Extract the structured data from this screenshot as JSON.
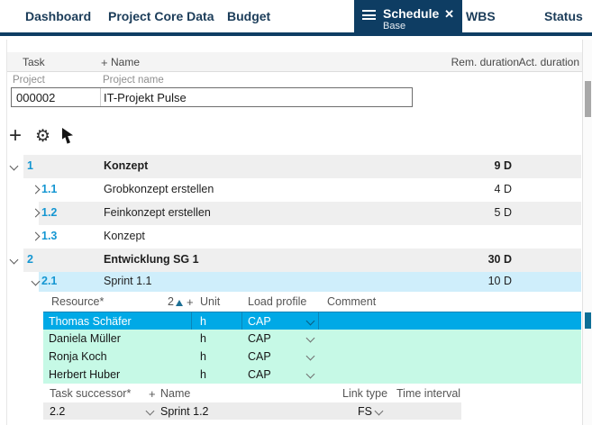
{
  "tab_bar": {
    "tabs": [
      {
        "label": "Dashboard",
        "active": false
      },
      {
        "label": "Project Core Data",
        "active": false
      },
      {
        "label": "Budget",
        "active": false
      },
      {
        "label": "Schedule",
        "active": true,
        "sublabel": "Base"
      },
      {
        "label": "WBS",
        "active": false
      },
      {
        "label": "Status",
        "active": false
      }
    ]
  },
  "table_header": {
    "task": "Task",
    "add": "+",
    "name": "Name",
    "rem_duration": "Rem. duration",
    "act_duration": "Act. duration"
  },
  "project_row": {
    "type_label": "Project",
    "name_label": "Project name",
    "id": "000002",
    "name": "IT-Projekt Pulse"
  },
  "toolbar": {
    "add_label": "+",
    "settings_glyph": "⚙"
  },
  "tasks": [
    {
      "wbs": "1",
      "name": "Konzept",
      "rem_duration": "9 D",
      "level": 1,
      "expanded": true,
      "emphasis": true,
      "shade": "gray"
    },
    {
      "wbs": "1.1",
      "name": "Grobkonzept erstellen",
      "rem_duration": "4 D",
      "level": 2,
      "expanded": false,
      "emphasis": false,
      "shade": "white"
    },
    {
      "wbs": "1.2",
      "name": "Feinkonzept erstellen",
      "rem_duration": "5 D",
      "level": 2,
      "expanded": false,
      "emphasis": false,
      "shade": "gray"
    },
    {
      "wbs": "1.3",
      "name": "Konzept",
      "rem_duration": "",
      "level": 2,
      "expanded": false,
      "emphasis": false,
      "shade": "white"
    },
    {
      "wbs": "2",
      "name": "Entwicklung SG 1",
      "rem_duration": "30 D",
      "level": 1,
      "expanded": true,
      "emphasis": true,
      "shade": "gray"
    },
    {
      "wbs": "2.1",
      "name": "Sprint 1.1",
      "rem_duration": "10 D",
      "level": 2,
      "expanded": true,
      "emphasis": false,
      "shade": "selected"
    }
  ],
  "resource_table": {
    "headers": {
      "resource": "Resource*",
      "sort_badge": "2",
      "add": "+",
      "unit": "Unit",
      "load_profile": "Load profile",
      "comment": "Comment"
    },
    "rows": [
      {
        "resource": "Thomas Schäfer",
        "unit": "h",
        "load_profile": "CAP",
        "comment": "",
        "selected": true
      },
      {
        "resource": "Daniela Müller",
        "unit": "h",
        "load_profile": "CAP",
        "comment": "",
        "selected": false
      },
      {
        "resource": "Ronja Koch",
        "unit": "h",
        "load_profile": "CAP",
        "comment": "",
        "selected": false
      },
      {
        "resource": "Herbert Huber",
        "unit": "h",
        "load_profile": "CAP",
        "comment": "",
        "selected": false
      }
    ]
  },
  "successor_table": {
    "headers": {
      "task_successor": "Task successor*",
      "add": "+",
      "name": "Name",
      "link_type": "Link type",
      "time_interval": "Time interval"
    },
    "rows": [
      {
        "task": "2.2",
        "name": "Sprint 1.2",
        "link_type": "FS",
        "time_interval": ""
      }
    ]
  },
  "colors": {
    "accent_navy": "#0e3d63",
    "wbs_number_blue": "#1496d2",
    "selected_task_row": "#cfeefb",
    "selected_resource_row": "#00a9e6",
    "resource_row_green": "#c6f9e6",
    "striped_row_gray": "#efefef"
  }
}
